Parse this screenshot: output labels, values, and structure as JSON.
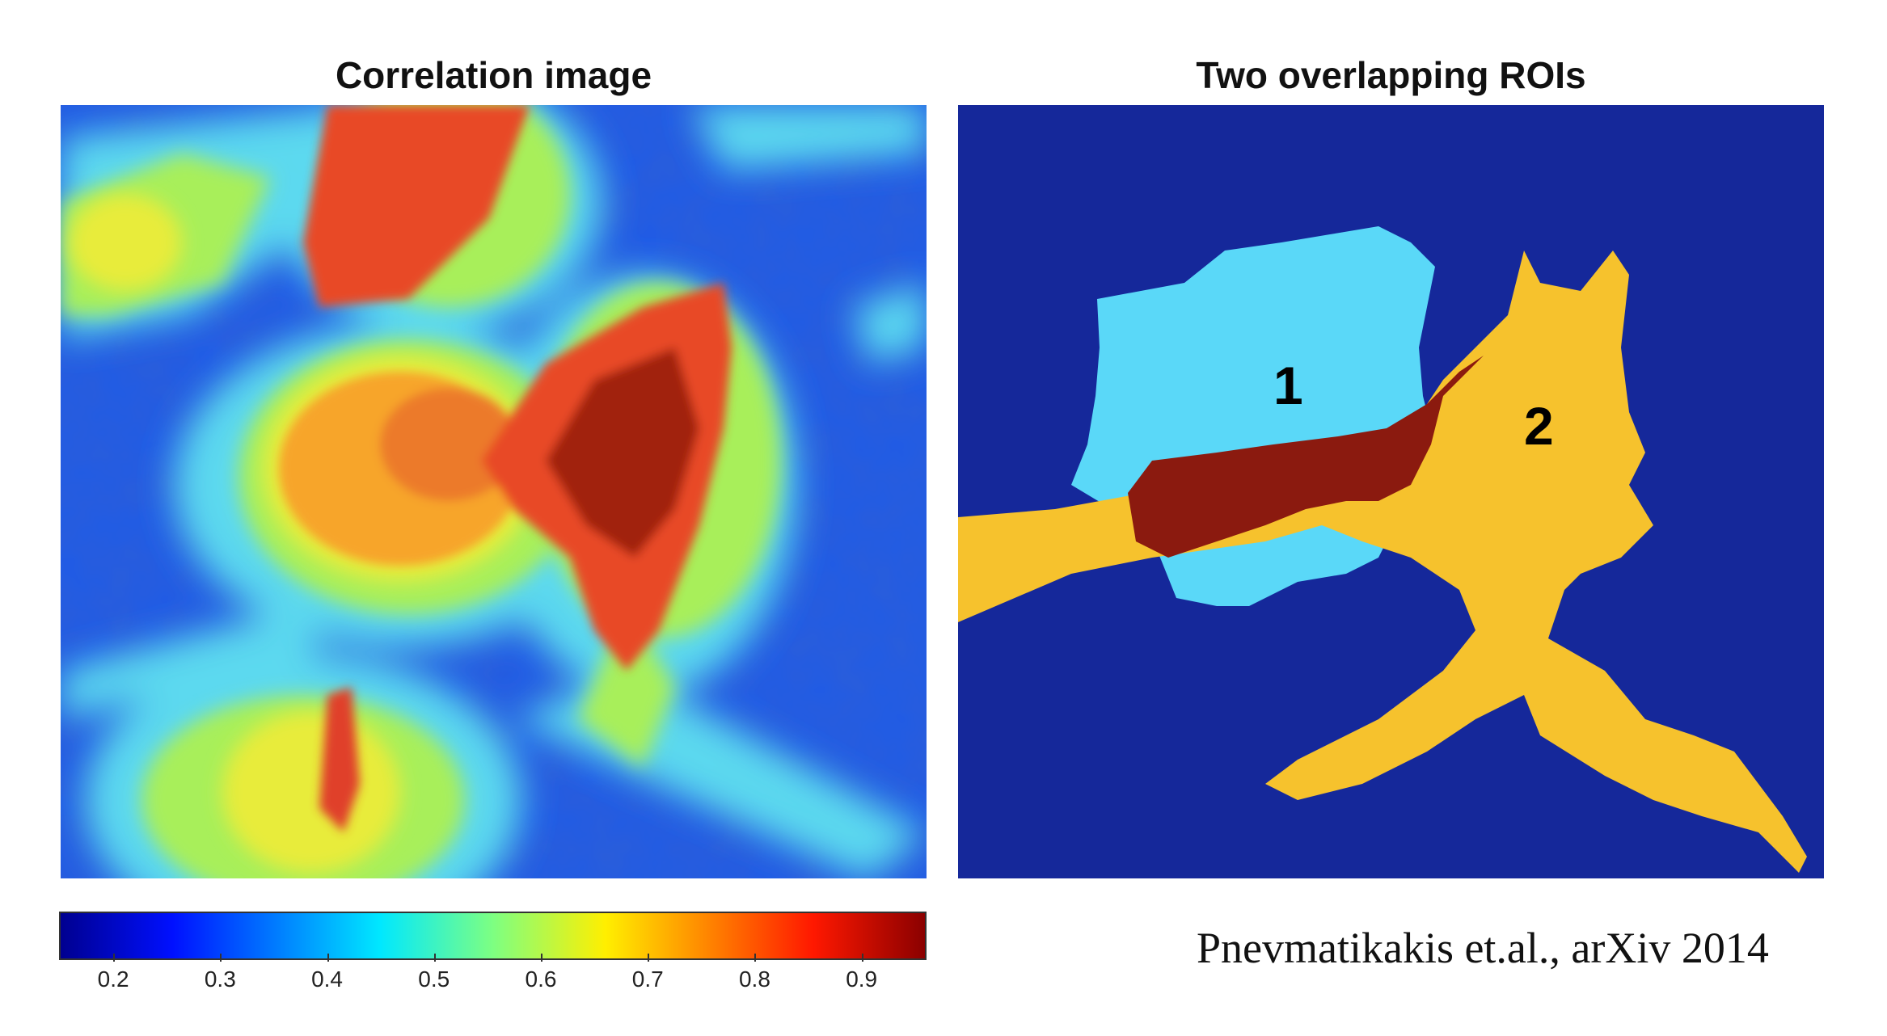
{
  "figure": {
    "left_panel": {
      "title": "Correlation image"
    },
    "right_panel": {
      "title": "Two overlapping ROIs",
      "roi_labels": [
        "1",
        "2"
      ],
      "colors": {
        "background": "#15289a",
        "roi1": "#5ad8f8",
        "roi2": "#f6c22d",
        "overlap": "#8b1a0f"
      }
    },
    "colorbar": {
      "ticks": [
        "0.2",
        "0.3",
        "0.4",
        "0.5",
        "0.6",
        "0.7",
        "0.8",
        "0.9"
      ],
      "colormap": "jet",
      "range": [
        0.15,
        0.96
      ]
    },
    "citation": "Pnevmatikakis et.al., arXiv 2014"
  }
}
